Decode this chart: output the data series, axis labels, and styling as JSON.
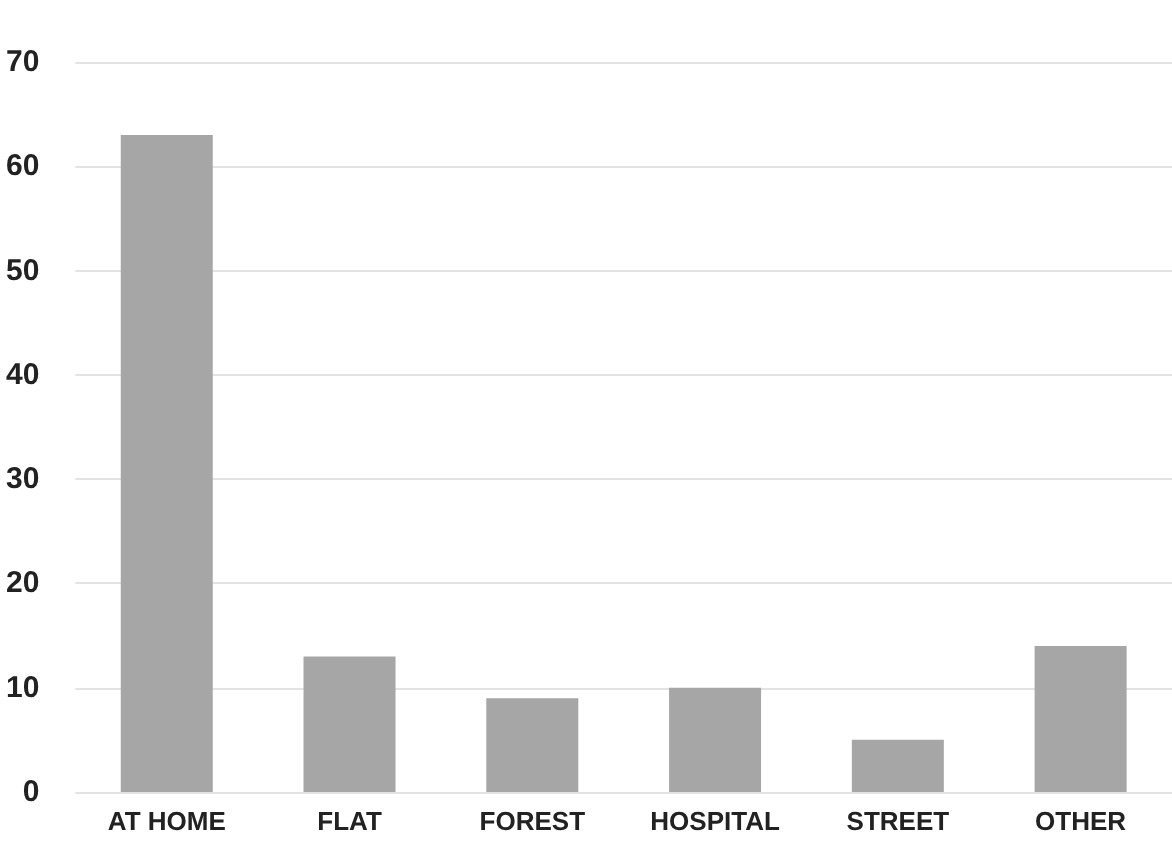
{
  "chart_data": {
    "type": "bar",
    "categories": [
      "AT HOME",
      "FLAT",
      "FOREST",
      "HOSPITAL",
      "STREET",
      "OTHER"
    ],
    "values": [
      63,
      13,
      9,
      10,
      5,
      14
    ],
    "color": "#a6a6a6",
    "ylim": [
      0,
      70
    ],
    "yticks": [
      0,
      10,
      20,
      30,
      40,
      50,
      60,
      70
    ],
    "grid": "y"
  }
}
